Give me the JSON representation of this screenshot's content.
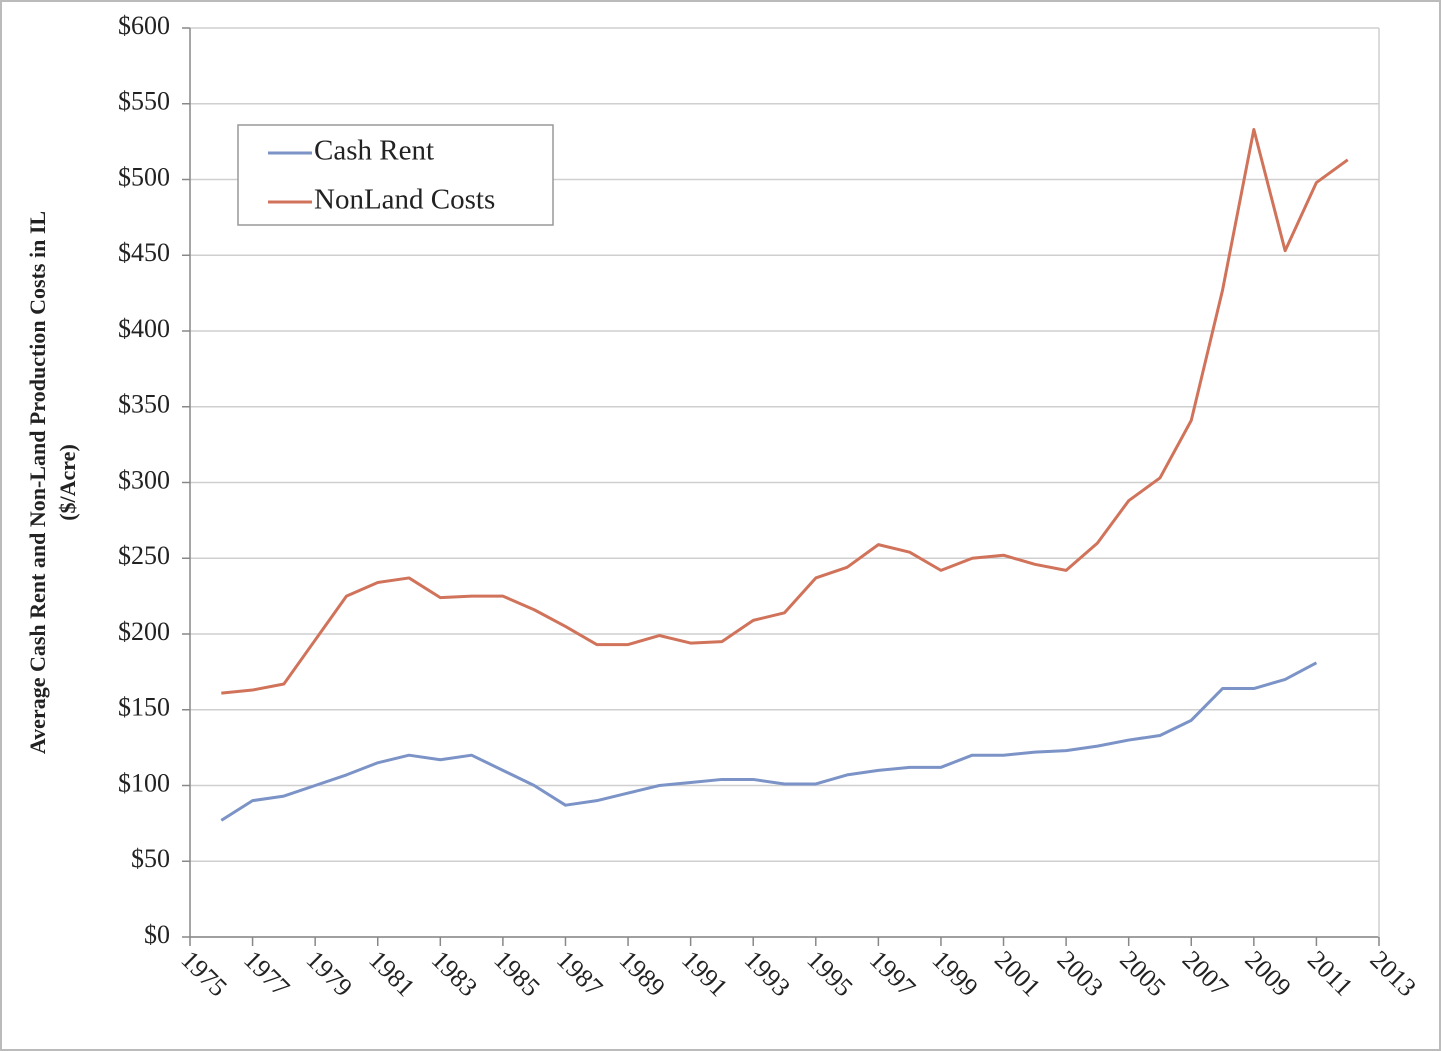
{
  "chart_data": {
    "type": "line",
    "ylabel": [
      "Average Cash Rent and Non-Land Production Costs in IL",
      "($/Acre)"
    ],
    "x": [
      1976,
      1977,
      1978,
      1979,
      1980,
      1981,
      1982,
      1983,
      1984,
      1985,
      1986,
      1987,
      1988,
      1989,
      1990,
      1991,
      1992,
      1993,
      1994,
      1995,
      1996,
      1997,
      1998,
      1999,
      2000,
      2001,
      2002,
      2003,
      2004,
      2005,
      2006,
      2007,
      2008,
      2009,
      2010,
      2011,
      2012
    ],
    "series": [
      {
        "name": "Cash Rent",
        "color": "#7b93c6",
        "values": [
          77,
          90,
          93,
          100,
          107,
          115,
          120,
          117,
          120,
          110,
          100,
          87,
          90,
          95,
          100,
          102,
          104,
          104,
          101,
          101,
          107,
          110,
          112,
          112,
          120,
          120,
          122,
          123,
          126,
          130,
          133,
          143,
          164,
          164,
          170,
          181,
          null
        ]
      },
      {
        "name": "NonLand Costs",
        "color": "#d0735a",
        "values": [
          161,
          163,
          167,
          196,
          225,
          234,
          237,
          224,
          225,
          225,
          216,
          205,
          193,
          193,
          199,
          194,
          195,
          209,
          214,
          237,
          244,
          259,
          254,
          242,
          250,
          252,
          246,
          242,
          260,
          288,
          303,
          341,
          427,
          533,
          453,
          498,
          513
        ]
      }
    ],
    "xlim": [
      1975,
      2013
    ],
    "xticks": [
      1975,
      1977,
      1979,
      1981,
      1983,
      1985,
      1987,
      1989,
      1991,
      1993,
      1995,
      1997,
      1999,
      2001,
      2003,
      2005,
      2007,
      2009,
      2011,
      2013
    ],
    "ylim": [
      0,
      600
    ],
    "yticks": [
      {
        "value": 0,
        "label": "$0"
      },
      {
        "value": 50,
        "label": "$50"
      },
      {
        "value": 100,
        "label": "$100"
      },
      {
        "value": 150,
        "label": "$150"
      },
      {
        "value": 200,
        "label": "$200"
      },
      {
        "value": 250,
        "label": "$250"
      },
      {
        "value": 300,
        "label": "$300"
      },
      {
        "value": 350,
        "label": "$350"
      },
      {
        "value": 400,
        "label": "$400"
      },
      {
        "value": 450,
        "label": "$450"
      },
      {
        "value": 500,
        "label": "$500"
      },
      {
        "value": 550,
        "label": "$550"
      },
      {
        "value": 600,
        "label": "$600"
      }
    ],
    "grid": true,
    "legend": "top-left"
  }
}
